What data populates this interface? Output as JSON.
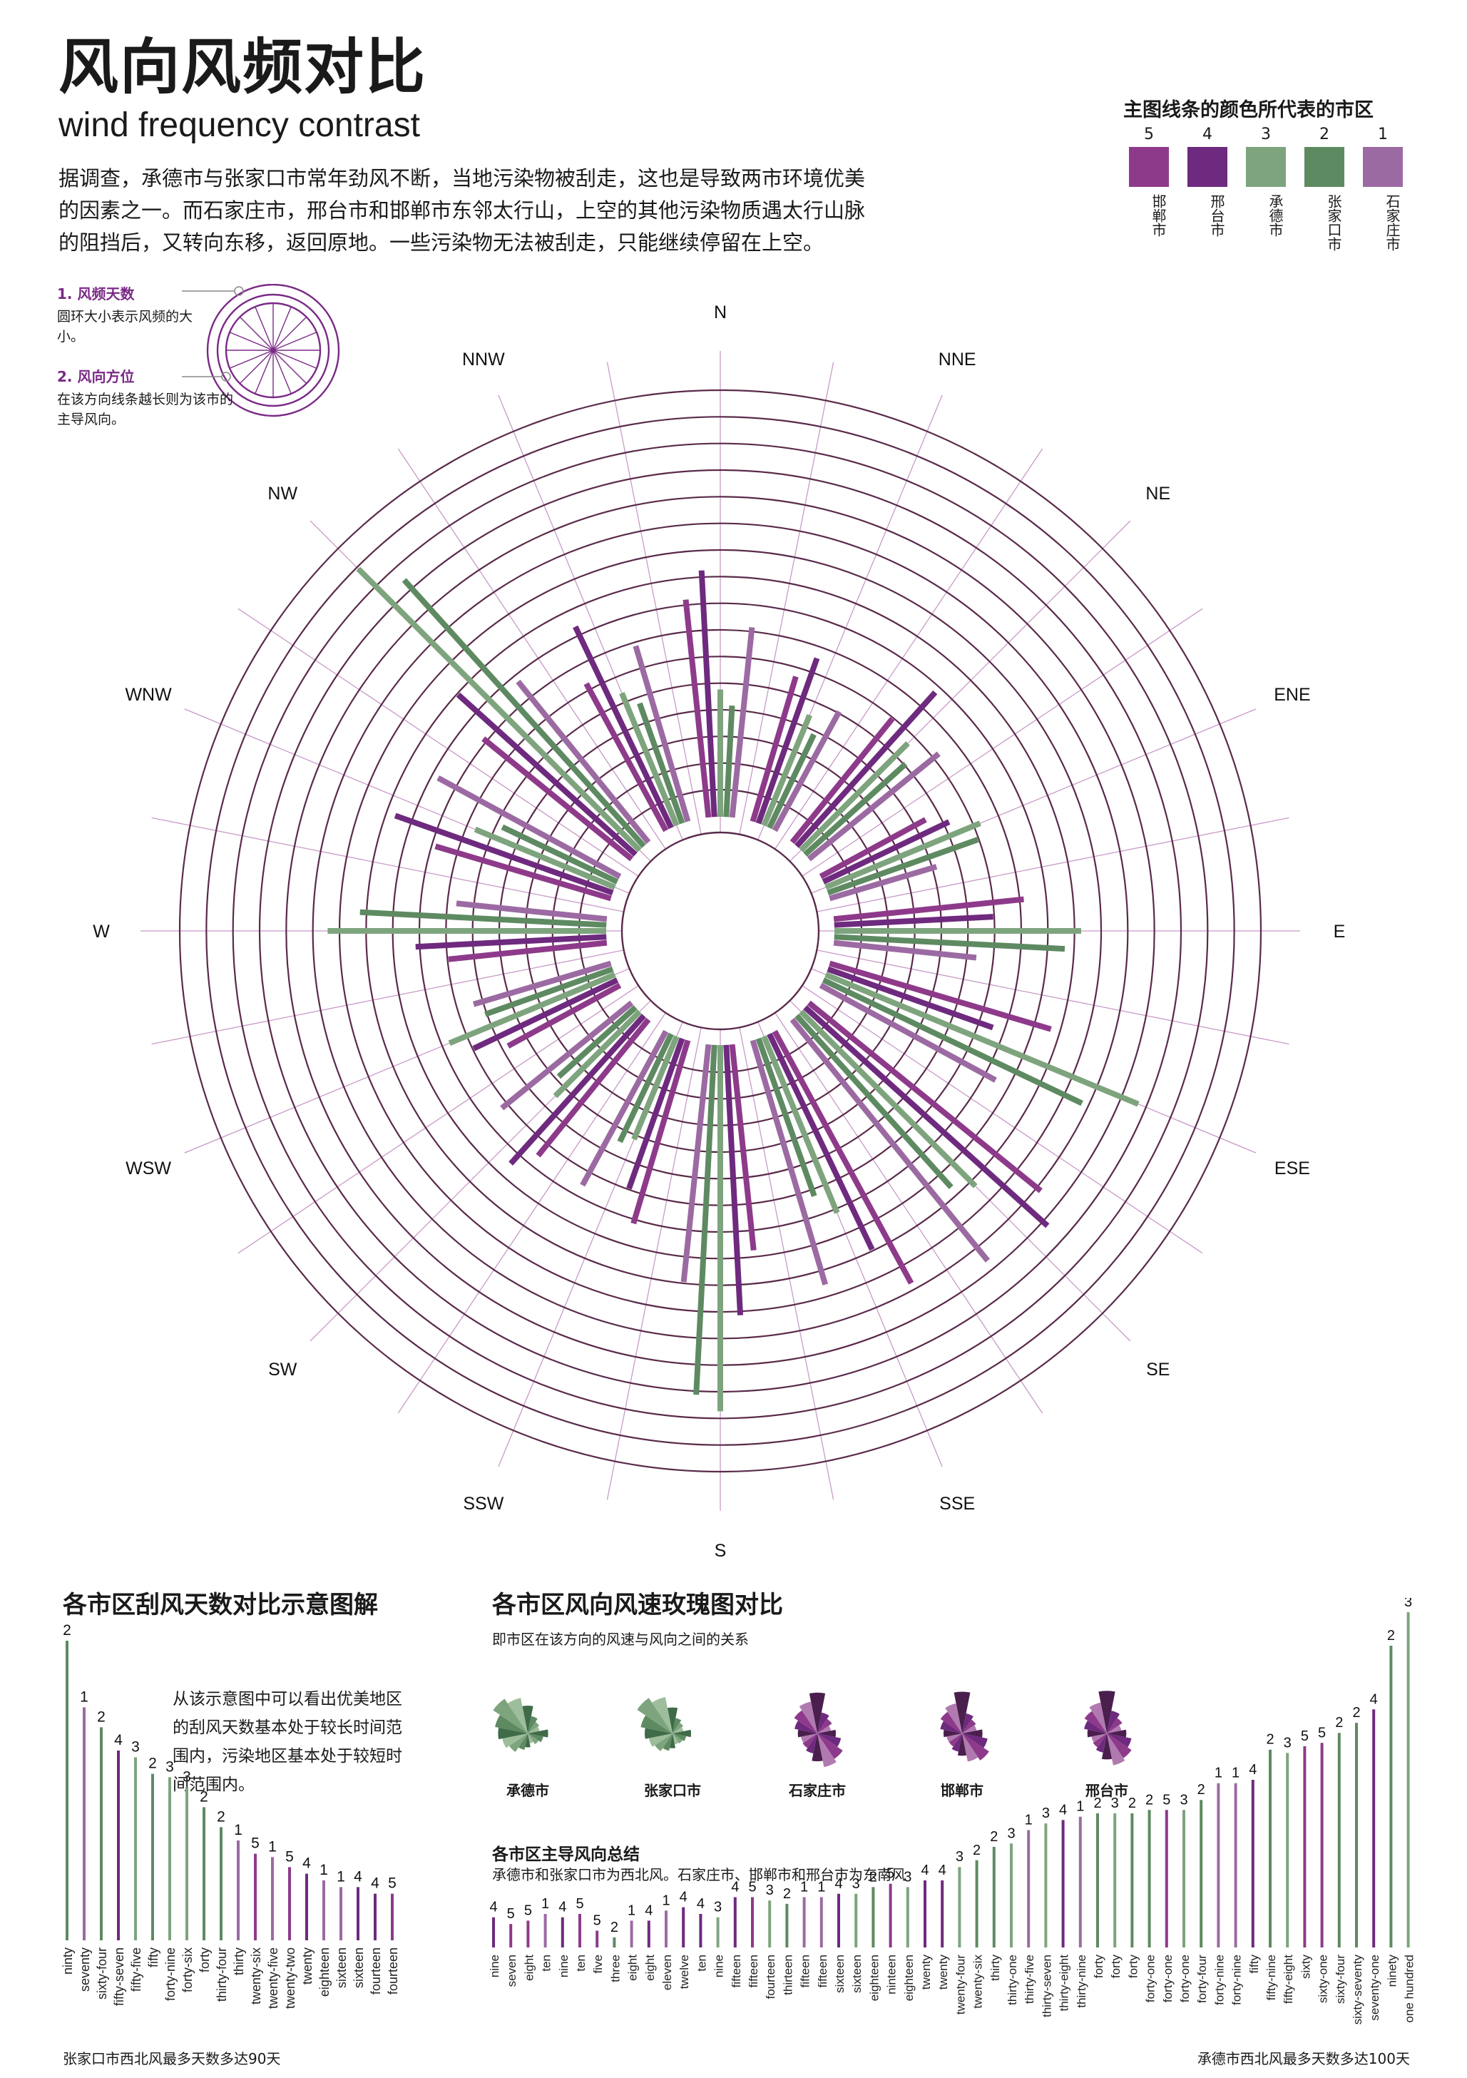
{
  "title_cn": "风向风频对比",
  "title_en": "wind frequency contrast",
  "intro": "据调查，承德市与张家口市常年劲风不断，当地污染物被刮走，这也是导致两市环境优美的因素之一。而石家庄市，邢台市和邯郸市东邻太行山，上空的其他污染物质遇太行山脉的阻挡后，又转向东移，返回原地。一些污染物无法被刮走，只能继续停留在上空。",
  "legend": {
    "title": "主图线条的颜色所代表的市区",
    "items": [
      {
        "num": "5",
        "city": "邯郸市",
        "color": "#8e3a8a"
      },
      {
        "num": "4",
        "city": "邢台市",
        "color": "#6e2a7e"
      },
      {
        "num": "3",
        "city": "承德市",
        "color": "#7ea47e"
      },
      {
        "num": "2",
        "city": "张家口市",
        "color": "#5e8a62"
      },
      {
        "num": "1",
        "city": "石家庄市",
        "color": "#9c6aa2"
      }
    ]
  },
  "key": {
    "item1_title": "1. 风频天数",
    "item1_desc": "圆环大小表示风频的大小。",
    "item2_title": "2. 风向方位",
    "item2_desc": "在该方向线条越长则为该市的主导风向。"
  },
  "colors": {
    "ring": "#5a2a4a",
    "spoke": "#c89ac8",
    "tick": "#b07ab0"
  },
  "chart_data": [
    {
      "type": "radial-bar",
      "directions": [
        "N",
        "NNE",
        "NE",
        "ENE",
        "E",
        "ESE",
        "SE",
        "SSE",
        "S",
        "SSW",
        "SW",
        "WSW",
        "W",
        "WNW",
        "NW",
        "NNW"
      ],
      "series_order": [
        "邯郸市",
        "邢台市",
        "承德市",
        "张家口市",
        "石家庄市"
      ],
      "ring_count": 15,
      "values": {
        "N": [
          55,
          62,
          32,
          28,
          48
        ],
        "NNE": [
          38,
          44,
          30,
          26,
          34
        ],
        "NE": [
          40,
          52,
          38,
          34,
          42
        ],
        "ENE": [
          30,
          35,
          42,
          40,
          28
        ],
        "E": [
          48,
          40,
          62,
          58,
          36
        ],
        "ESE": [
          58,
          44,
          85,
          72,
          50
        ],
        "SE": [
          75,
          82,
          62,
          58,
          78
        ],
        "SSE": [
          72,
          60,
          48,
          42,
          64
        ],
        "S": [
          52,
          68,
          92,
          88,
          60
        ],
        "SSW": [
          48,
          40,
          28,
          30,
          44
        ],
        "SW": [
          44,
          50,
          30,
          26,
          42
        ],
        "WSW": [
          32,
          40,
          45,
          34,
          36
        ],
        "W": [
          40,
          48,
          70,
          62,
          38
        ],
        "WNW": [
          46,
          58,
          38,
          32,
          52
        ],
        "NW": [
          48,
          60,
          100,
          90,
          52
        ],
        "NNW": [
          42,
          56,
          36,
          32,
          46
        ]
      },
      "direction_labels": [
        "N",
        "NNE",
        "NE",
        "ENE",
        "E",
        "ESE",
        "SE",
        "SSE",
        "S",
        "SSW",
        "SW",
        "WSW",
        "W",
        "WNW",
        "NW",
        "NNW"
      ]
    },
    {
      "type": "bar",
      "title": "各市区刮风天数对比示意图解",
      "bars": [
        {
          "label": "ninty",
          "value": 90,
          "num": "2",
          "series": 2
        },
        {
          "label": "seventy",
          "value": 70,
          "num": "1",
          "series": 1
        },
        {
          "label": "sixty-four",
          "value": 64,
          "num": "2",
          "series": 2
        },
        {
          "label": "fifty-seven",
          "value": 57,
          "num": "4",
          "series": 4
        },
        {
          "label": "fifty-five",
          "value": 55,
          "num": "3",
          "series": 3
        },
        {
          "label": "fifty",
          "value": 50,
          "num": "2",
          "series": 2
        },
        {
          "label": "forty-nine",
          "value": 49,
          "num": "3",
          "series": 3
        },
        {
          "label": "forty-six",
          "value": 46,
          "num": "3",
          "series": 3
        },
        {
          "label": "forty",
          "value": 40,
          "num": "2",
          "series": 2
        },
        {
          "label": "thirty-four",
          "value": 34,
          "num": "2",
          "series": 2
        },
        {
          "label": "thirty",
          "value": 30,
          "num": "1",
          "series": 1
        },
        {
          "label": "twenty-six",
          "value": 26,
          "num": "5",
          "series": 5
        },
        {
          "label": "twenty-five",
          "value": 25,
          "num": "1",
          "series": 1
        },
        {
          "label": "twenty-two",
          "value": 22,
          "num": "5",
          "series": 5
        },
        {
          "label": "twenty",
          "value": 20,
          "num": "4",
          "series": 4
        },
        {
          "label": "eighteen",
          "value": 18,
          "num": "1",
          "series": 1
        },
        {
          "label": "sixteen",
          "value": 16,
          "num": "1",
          "series": 1
        },
        {
          "label": "sixteen",
          "value": 16,
          "num": "4",
          "series": 4
        },
        {
          "label": "fourteen",
          "value": 14,
          "num": "4",
          "series": 4
        },
        {
          "label": "fourteen",
          "value": 14,
          "num": "5",
          "series": 5
        }
      ],
      "note": "从该示意图中可以看出优美地区的刮风天数基本处于较长时间范围内，污染地区基本处于较短时间范围内。",
      "footnote": "张家口市西北风最多天数多达90天"
    },
    {
      "type": "bar",
      "title": "各市区风向风速玫瑰图对比",
      "subtitle": "即市区在该方向的风速与风向之间的关系",
      "bars": [
        {
          "label": "nine",
          "value": 9,
          "num": "4",
          "series": 4
        },
        {
          "label": "seven",
          "value": 7,
          "num": "5",
          "series": 5
        },
        {
          "label": "eight",
          "value": 8,
          "num": "5",
          "series": 5
        },
        {
          "label": "ten",
          "value": 10,
          "num": "1",
          "series": 1
        },
        {
          "label": "nine",
          "value": 9,
          "num": "4",
          "series": 4
        },
        {
          "label": "ten",
          "value": 10,
          "num": "5",
          "series": 5
        },
        {
          "label": "five",
          "value": 5,
          "num": "5",
          "series": 5
        },
        {
          "label": "three",
          "value": 3,
          "num": "2",
          "series": 2
        },
        {
          "label": "eight",
          "value": 8,
          "num": "1",
          "series": 1
        },
        {
          "label": "eight",
          "value": 8,
          "num": "4",
          "series": 4
        },
        {
          "label": "eleven",
          "value": 11,
          "num": "1",
          "series": 1
        },
        {
          "label": "twelve",
          "value": 12,
          "num": "4",
          "series": 4
        },
        {
          "label": "ten",
          "value": 10,
          "num": "4",
          "series": 4
        },
        {
          "label": "nine",
          "value": 9,
          "num": "3",
          "series": 3
        },
        {
          "label": "fifteen",
          "value": 15,
          "num": "4",
          "series": 4
        },
        {
          "label": "fifteen",
          "value": 15,
          "num": "5",
          "series": 5
        },
        {
          "label": "fourteen",
          "value": 14,
          "num": "3",
          "series": 3
        },
        {
          "label": "thirteen",
          "value": 13,
          "num": "2",
          "series": 2
        },
        {
          "label": "fifteen",
          "value": 15,
          "num": "1",
          "series": 1
        },
        {
          "label": "fifteen",
          "value": 15,
          "num": "1",
          "series": 1
        },
        {
          "label": "sixteen",
          "value": 16,
          "num": "4",
          "series": 4
        },
        {
          "label": "sixteen",
          "value": 16,
          "num": "3",
          "series": 3
        },
        {
          "label": "eighteen",
          "value": 18,
          "num": "2",
          "series": 2
        },
        {
          "label": "ninteen",
          "value": 19,
          "num": "5",
          "series": 5
        },
        {
          "label": "eighteen",
          "value": 18,
          "num": "3",
          "series": 3
        },
        {
          "label": "twenty",
          "value": 20,
          "num": "4",
          "series": 4
        },
        {
          "label": "twenty",
          "value": 20,
          "num": "4",
          "series": 4
        },
        {
          "label": "twenty-four",
          "value": 24,
          "num": "3",
          "series": 3
        },
        {
          "label": "twenty-six",
          "value": 26,
          "num": "2",
          "series": 2
        },
        {
          "label": "thirty",
          "value": 30,
          "num": "2",
          "series": 2
        },
        {
          "label": "thirty-one",
          "value": 31,
          "num": "3",
          "series": 3
        },
        {
          "label": "thirty-five",
          "value": 35,
          "num": "1",
          "series": 1
        },
        {
          "label": "thirty-seven",
          "value": 37,
          "num": "3",
          "series": 3
        },
        {
          "label": "thirty-eight",
          "value": 38,
          "num": "4",
          "series": 4
        },
        {
          "label": "thirty-nine",
          "value": 39,
          "num": "1",
          "series": 1
        },
        {
          "label": "forty",
          "value": 40,
          "num": "2",
          "series": 2
        },
        {
          "label": "forty",
          "value": 40,
          "num": "3",
          "series": 3
        },
        {
          "label": "forty",
          "value": 40,
          "num": "2",
          "series": 2
        },
        {
          "label": "forty-one",
          "value": 41,
          "num": "2",
          "series": 2
        },
        {
          "label": "forty-one",
          "value": 41,
          "num": "5",
          "series": 5
        },
        {
          "label": "forty-one",
          "value": 41,
          "num": "3",
          "series": 3
        },
        {
          "label": "forty-four",
          "value": 44,
          "num": "2",
          "series": 2
        },
        {
          "label": "forty-nine",
          "value": 49,
          "num": "1",
          "series": 1
        },
        {
          "label": "forty-nine",
          "value": 49,
          "num": "1",
          "series": 1
        },
        {
          "label": "fifty",
          "value": 50,
          "num": "4",
          "series": 4
        },
        {
          "label": "fifty-nine",
          "value": 59,
          "num": "2",
          "series": 2
        },
        {
          "label": "fifty-eight",
          "value": 58,
          "num": "3",
          "series": 3
        },
        {
          "label": "sixty",
          "value": 60,
          "num": "5",
          "series": 5
        },
        {
          "label": "sixty-one",
          "value": 61,
          "num": "5",
          "series": 5
        },
        {
          "label": "sixty-four",
          "value": 64,
          "num": "2",
          "series": 2
        },
        {
          "label": "sixty-seventy",
          "value": 67,
          "num": "2",
          "series": 2
        },
        {
          "label": "seventy-one",
          "value": 71,
          "num": "4",
          "series": 4
        },
        {
          "label": "ninety",
          "value": 90,
          "num": "2",
          "series": 2
        },
        {
          "label": "one hundred",
          "value": 100,
          "num": "3",
          "series": 3
        }
      ],
      "summary_title": "各市区主导风向总结",
      "summary": "承德市和张家口市为西北风。石家庄市、邯郸市和邢台市为东南风",
      "footnote": "承德市西北风最多天数多达100天"
    }
  ],
  "mini_roses": [
    {
      "city": "承德市",
      "palette": "green",
      "petals": [
        60,
        38,
        30,
        26,
        44,
        34,
        28,
        22,
        30,
        36,
        48,
        56,
        64,
        72,
        90,
        78
      ]
    },
    {
      "city": "张家口市",
      "palette": "green",
      "petals": [
        56,
        34,
        28,
        24,
        40,
        30,
        26,
        24,
        32,
        38,
        46,
        52,
        60,
        70,
        92,
        80
      ]
    },
    {
      "city": "石家庄市",
      "palette": "purple",
      "petals": [
        88,
        46,
        38,
        30,
        40,
        52,
        66,
        74,
        60,
        44,
        38,
        36,
        42,
        50,
        60,
        70
      ]
    },
    {
      "city": "邯郸市",
      "palette": "purple",
      "petals": [
        90,
        44,
        36,
        32,
        44,
        56,
        70,
        62,
        48,
        40,
        34,
        34,
        40,
        48,
        56,
        66
      ]
    },
    {
      "city": "邢台市",
      "palette": "purple",
      "petals": [
        92,
        50,
        40,
        32,
        42,
        54,
        64,
        70,
        56,
        42,
        36,
        34,
        42,
        50,
        58,
        68
      ]
    }
  ]
}
